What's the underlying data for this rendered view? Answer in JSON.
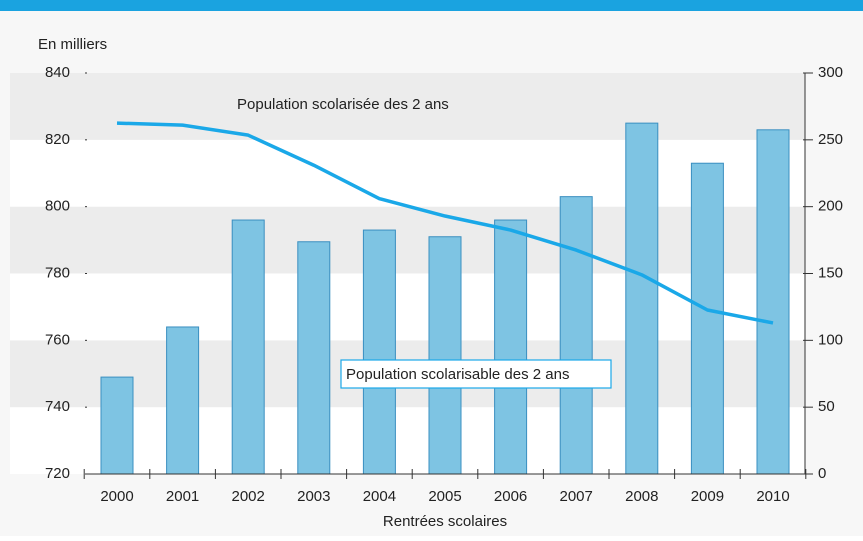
{
  "chart_data": {
    "type": "bar",
    "y_label": "En milliers",
    "x_label": "Rentrées scolaires",
    "categories": [
      "2000",
      "2001",
      "2002",
      "2003",
      "2004",
      "2005",
      "2006",
      "2007",
      "2008",
      "2009",
      "2010"
    ],
    "series": [
      {
        "name": "Population scolarisable des 2 ans",
        "type": "bar",
        "color": "#7ec4e3",
        "values": [
          749,
          764,
          796,
          789.5,
          793,
          791,
          796,
          803,
          825,
          813,
          823
        ]
      },
      {
        "name": "Population scolarisée des 2 ans",
        "type": "line",
        "axis": "y2",
        "color": "#1aa8e8",
        "values": [
          262.5,
          261,
          253.5,
          231,
          206,
          193,
          182.5,
          167.5,
          149,
          122.7,
          113
        ]
      }
    ],
    "ylim": [
      720,
      840
    ],
    "yticks": [
      720,
      740,
      760,
      780,
      800,
      820,
      840
    ],
    "y2lim": [
      0,
      300
    ],
    "y2ticks": [
      0,
      50,
      100,
      150,
      200,
      250,
      300
    ]
  }
}
